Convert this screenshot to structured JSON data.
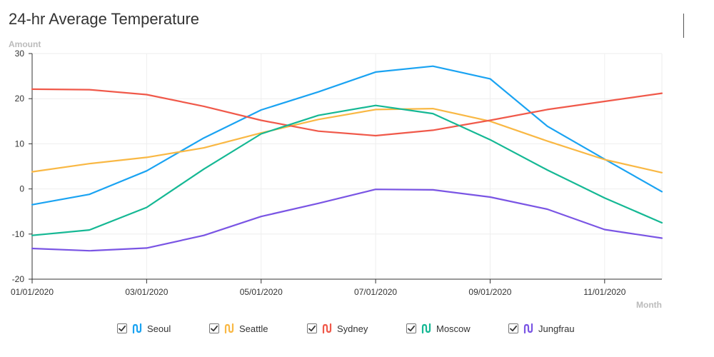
{
  "chart_data": {
    "type": "line",
    "title": "24-hr Average Temperature",
    "ylabel": "Amount",
    "xlabel": "Month",
    "ylim": [
      -20,
      30
    ],
    "yticks": [
      "30",
      "20",
      "10",
      "0",
      "-10",
      "-20"
    ],
    "x": [
      "01/01/2020",
      "02/01/2020",
      "03/01/2020",
      "04/01/2020",
      "05/01/2020",
      "06/01/2020",
      "07/01/2020",
      "08/01/2020",
      "09/01/2020",
      "10/01/2020",
      "11/01/2020",
      "12/01/2020"
    ],
    "xtick_labels": [
      "01/01/2020",
      "03/01/2020",
      "05/01/2020",
      "07/01/2020",
      "09/01/2020",
      "11/01/2020"
    ],
    "grid": true,
    "legend_position": "bottom",
    "series": [
      {
        "name": "Seoul",
        "color": "#1aa3f2",
        "values": [
          -3.5,
          -1.2,
          4.0,
          11.3,
          17.5,
          21.5,
          25.9,
          27.2,
          24.4,
          13.9,
          6.6,
          -0.6
        ]
      },
      {
        "name": "Seattle",
        "color": "#f9b844",
        "values": [
          3.8,
          5.6,
          7.0,
          9.1,
          12.4,
          15.4,
          17.6,
          17.8,
          15.0,
          10.6,
          6.5,
          3.6
        ]
      },
      {
        "name": "Sydney",
        "color": "#f0594a",
        "values": [
          22.1,
          22.0,
          20.9,
          18.3,
          15.2,
          12.8,
          11.8,
          13.0,
          15.2,
          17.6,
          19.4,
          21.2
        ]
      },
      {
        "name": "Moscow",
        "color": "#15b894",
        "values": [
          -10.3,
          -9.1,
          -4.1,
          4.4,
          12.2,
          16.3,
          18.5,
          16.7,
          10.9,
          4.2,
          -2.0,
          -7.5
        ]
      },
      {
        "name": "Jungfrau",
        "color": "#7a55e4",
        "values": [
          -13.2,
          -13.7,
          -13.1,
          -10.3,
          -6.1,
          -3.2,
          -0.1,
          -0.2,
          -1.8,
          -4.5,
          -9.0,
          -10.9
        ]
      }
    ]
  }
}
